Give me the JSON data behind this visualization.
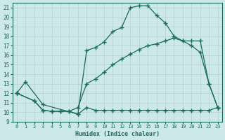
{
  "bg_color": "#cce8ea",
  "grid_color": "#b8d4d6",
  "line_color": "#1a6b5a",
  "xlabel": "Humidex (Indice chaleur)",
  "xlim": [
    -0.5,
    23.5
  ],
  "ylim": [
    9,
    21.5
  ],
  "xticks": [
    0,
    1,
    2,
    3,
    4,
    5,
    6,
    7,
    8,
    9,
    10,
    11,
    12,
    13,
    14,
    15,
    16,
    17,
    18,
    19,
    20,
    21,
    22,
    23
  ],
  "yticks": [
    9,
    10,
    11,
    12,
    13,
    14,
    15,
    16,
    17,
    18,
    19,
    20,
    21
  ],
  "curve1_x": [
    0,
    1,
    3,
    7,
    8,
    9,
    10,
    11,
    12,
    13,
    14,
    15,
    16,
    17,
    18,
    19,
    20,
    21,
    22,
    23
  ],
  "curve1_y": [
    12,
    13.2,
    10.8,
    9.8,
    16.5,
    16.8,
    17.4,
    18.5,
    18.9,
    21.0,
    21.2,
    21.2,
    20.2,
    19.4,
    18.0,
    17.5,
    17.0,
    16.3,
    13.0,
    10.5
  ],
  "curve2_x": [
    0,
    2,
    3,
    4,
    5,
    6,
    7,
    8,
    9,
    10,
    11,
    12,
    13,
    14,
    15,
    16,
    17,
    18,
    19,
    20,
    21,
    22,
    23
  ],
  "curve2_y": [
    12,
    11.2,
    10.2,
    10.1,
    10.1,
    10.1,
    10.5,
    13.0,
    13.5,
    14.2,
    15.0,
    15.6,
    16.1,
    16.6,
    17.0,
    17.2,
    17.5,
    17.8,
    17.5,
    17.5,
    17.5,
    13.0,
    10.5
  ],
  "curve3_x": [
    0,
    2,
    3,
    4,
    5,
    6,
    7,
    8,
    9,
    10,
    11,
    12,
    13,
    14,
    15,
    16,
    17,
    18,
    19,
    20,
    21,
    22,
    23
  ],
  "curve3_y": [
    12,
    11.2,
    10.2,
    10.1,
    10.1,
    10.1,
    9.8,
    10.5,
    10.2,
    10.2,
    10.2,
    10.2,
    10.2,
    10.2,
    10.2,
    10.2,
    10.2,
    10.2,
    10.2,
    10.2,
    10.2,
    10.2,
    10.5
  ]
}
